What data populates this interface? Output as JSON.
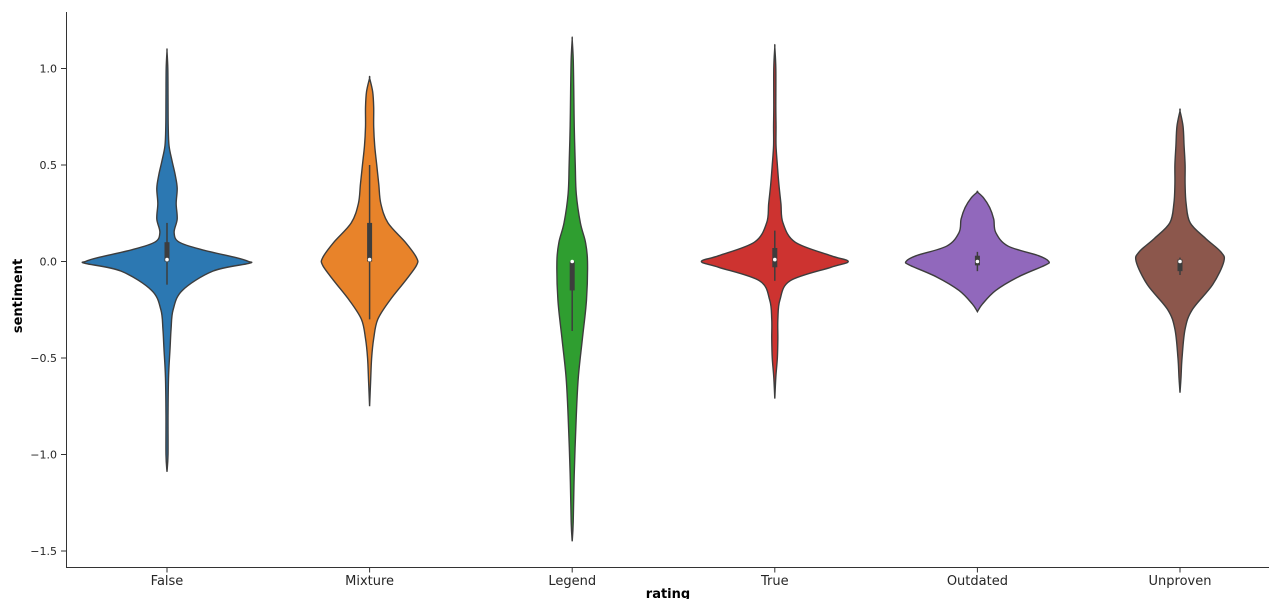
{
  "chart_data": {
    "type": "violin",
    "xlabel": "rating",
    "ylabel": "sentiment",
    "ylim": [
      -1.55,
      1.28
    ],
    "yticks": [
      1.0,
      0.5,
      0.0,
      -0.5,
      -1.0,
      -1.5
    ],
    "ytick_labels": [
      "1.0",
      "0.5",
      "0.0",
      "−0.5",
      "−1.0",
      "−1.5"
    ],
    "grid": false,
    "categories": [
      "False",
      "Mixture",
      "Legend",
      "True",
      "Outdated",
      "Unproven"
    ],
    "series": [
      {
        "color": "#2c78b2",
        "min": -1.09,
        "max": 1.09,
        "q1": 0.0,
        "median": 0.01,
        "q3": 0.1,
        "whisker_low": -0.12,
        "whisker_high": 0.2,
        "profile": [
          [
            -1.09,
            0.0
          ],
          [
            -1.0,
            0.01
          ],
          [
            -0.8,
            0.01
          ],
          [
            -0.6,
            0.015
          ],
          [
            -0.45,
            0.03
          ],
          [
            -0.35,
            0.04
          ],
          [
            -0.25,
            0.06
          ],
          [
            -0.15,
            0.15
          ],
          [
            -0.05,
            0.45
          ],
          [
            -0.01,
            0.8
          ],
          [
            0.0,
            0.8
          ],
          [
            0.02,
            0.68
          ],
          [
            0.06,
            0.35
          ],
          [
            0.1,
            0.12
          ],
          [
            0.15,
            0.07
          ],
          [
            0.22,
            0.1
          ],
          [
            0.3,
            0.09
          ],
          [
            0.38,
            0.1
          ],
          [
            0.45,
            0.08
          ],
          [
            0.52,
            0.05
          ],
          [
            0.6,
            0.02
          ],
          [
            0.7,
            0.012
          ],
          [
            0.85,
            0.01
          ],
          [
            1.0,
            0.008
          ],
          [
            1.09,
            0.0
          ]
        ]
      },
      {
        "color": "#e8832a",
        "min": -0.75,
        "max": 0.95,
        "q1": 0.0,
        "median": 0.01,
        "q3": 0.2,
        "whisker_low": -0.3,
        "whisker_high": 0.5,
        "profile": [
          [
            -0.75,
            0.0
          ],
          [
            -0.62,
            0.01
          ],
          [
            -0.5,
            0.02
          ],
          [
            -0.4,
            0.04
          ],
          [
            -0.3,
            0.08
          ],
          [
            -0.2,
            0.2
          ],
          [
            -0.1,
            0.35
          ],
          [
            -0.02,
            0.46
          ],
          [
            0.02,
            0.46
          ],
          [
            0.1,
            0.35
          ],
          [
            0.2,
            0.18
          ],
          [
            0.3,
            0.11
          ],
          [
            0.4,
            0.09
          ],
          [
            0.5,
            0.07
          ],
          [
            0.6,
            0.05
          ],
          [
            0.7,
            0.04
          ],
          [
            0.8,
            0.04
          ],
          [
            0.88,
            0.03
          ],
          [
            0.95,
            0.0
          ]
        ]
      },
      {
        "color": "#2f9e30",
        "min": -1.45,
        "max": 1.15,
        "q1": -0.15,
        "median": 0.0,
        "q3": 0.0,
        "whisker_low": -0.36,
        "whisker_high": 0.0,
        "profile": [
          [
            -1.45,
            0.0
          ],
          [
            -1.35,
            0.01
          ],
          [
            -1.1,
            0.02
          ],
          [
            -0.8,
            0.04
          ],
          [
            -0.6,
            0.06
          ],
          [
            -0.4,
            0.1
          ],
          [
            -0.2,
            0.14
          ],
          [
            0.0,
            0.15
          ],
          [
            0.1,
            0.13
          ],
          [
            0.2,
            0.08
          ],
          [
            0.35,
            0.04
          ],
          [
            0.5,
            0.03
          ],
          [
            0.7,
            0.02
          ],
          [
            0.9,
            0.015
          ],
          [
            1.05,
            0.01
          ],
          [
            1.15,
            0.0
          ]
        ]
      },
      {
        "color": "#cd3330",
        "min": -0.71,
        "max": 1.11,
        "q1": -0.03,
        "median": 0.01,
        "q3": 0.07,
        "whisker_low": -0.1,
        "whisker_high": 0.16,
        "profile": [
          [
            -0.71,
            0.0
          ],
          [
            -0.6,
            0.01
          ],
          [
            -0.5,
            0.025
          ],
          [
            -0.4,
            0.03
          ],
          [
            -0.3,
            0.03
          ],
          [
            -0.2,
            0.05
          ],
          [
            -0.1,
            0.15
          ],
          [
            -0.03,
            0.55
          ],
          [
            0.0,
            0.72
          ],
          [
            0.03,
            0.55
          ],
          [
            0.1,
            0.2
          ],
          [
            0.2,
            0.08
          ],
          [
            0.3,
            0.06
          ],
          [
            0.4,
            0.04
          ],
          [
            0.5,
            0.025
          ],
          [
            0.6,
            0.012
          ],
          [
            0.7,
            0.012
          ],
          [
            0.8,
            0.01
          ],
          [
            1.0,
            0.01
          ],
          [
            1.11,
            0.0
          ]
        ]
      },
      {
        "color": "#9168bc",
        "min": -0.26,
        "max": 0.36,
        "q1": -0.02,
        "median": 0.0,
        "q3": 0.03,
        "whisker_low": -0.05,
        "whisker_high": 0.05,
        "profile": [
          [
            -0.26,
            0.0
          ],
          [
            -0.22,
            0.05
          ],
          [
            -0.15,
            0.18
          ],
          [
            -0.08,
            0.4
          ],
          [
            -0.02,
            0.66
          ],
          [
            0.0,
            0.7
          ],
          [
            0.03,
            0.6
          ],
          [
            0.08,
            0.3
          ],
          [
            0.15,
            0.18
          ],
          [
            0.22,
            0.16
          ],
          [
            0.28,
            0.12
          ],
          [
            0.33,
            0.06
          ],
          [
            0.36,
            0.0
          ]
        ]
      },
      {
        "color": "#8c574c",
        "min": -0.68,
        "max": 0.78,
        "q1": -0.05,
        "median": 0.0,
        "q3": 0.01,
        "whisker_low": -0.07,
        "whisker_high": 0.02,
        "profile": [
          [
            -0.68,
            0.0
          ],
          [
            -0.6,
            0.01
          ],
          [
            -0.5,
            0.02
          ],
          [
            -0.35,
            0.05
          ],
          [
            -0.25,
            0.12
          ],
          [
            -0.12,
            0.32
          ],
          [
            0.0,
            0.43
          ],
          [
            0.05,
            0.4
          ],
          [
            0.12,
            0.25
          ],
          [
            0.2,
            0.1
          ],
          [
            0.3,
            0.06
          ],
          [
            0.4,
            0.05
          ],
          [
            0.5,
            0.05
          ],
          [
            0.6,
            0.04
          ],
          [
            0.7,
            0.03
          ],
          [
            0.78,
            0.0
          ]
        ]
      }
    ]
  }
}
